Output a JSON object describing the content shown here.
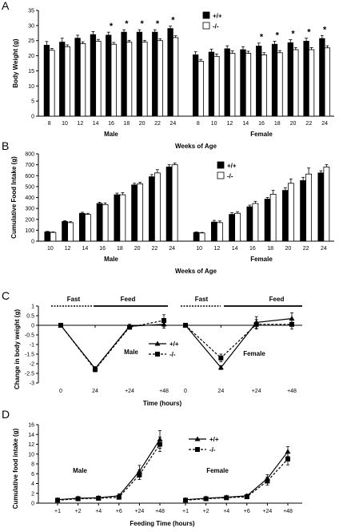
{
  "panels": [
    {
      "letter": "A",
      "ylabel": "Body Weight (g)",
      "xlabel": "Weeks of Age"
    },
    {
      "letter": "B",
      "ylabel": "Cumulative Food Intake (g)",
      "xlabel": "Weeks of Age"
    },
    {
      "letter": "C",
      "ylabel": "Change in body weight (g)",
      "xlabel": "Time (hours)"
    },
    {
      "letter": "D",
      "ylabel": "Cumulative food intake (g)",
      "xlabel": "Feeding Time (hours)"
    }
  ],
  "colors": {
    "wt": "#000000",
    "ko": "#ffffff"
  },
  "chart_data": [
    {
      "type": "bar",
      "ylabel": "Body Weight (g)",
      "xlabel": "Weeks of Age",
      "ylim": [
        0,
        35
      ],
      "yticks": [
        0,
        5,
        10,
        15,
        20,
        25,
        30,
        35
      ],
      "groups": [
        {
          "name": "Male",
          "categories": [
            "8",
            "10",
            "12",
            "14",
            "16",
            "18",
            "20",
            "22",
            "24"
          ],
          "series": [
            {
              "name": "+/+",
              "values": [
                23.5,
                24.5,
                25.8,
                27.0,
                26.8,
                27.8,
                27.8,
                27.8,
                29.0
              ],
              "err": [
                1.2,
                1.3,
                1.0,
                1.0,
                1.0,
                0.8,
                0.8,
                0.8,
                0.8
              ]
            },
            {
              "name": "-/-",
              "values": [
                21.8,
                23.0,
                24.0,
                24.8,
                23.8,
                24.5,
                24.5,
                25.0,
                26.0
              ],
              "err": [
                0.6,
                0.6,
                0.6,
                0.6,
                0.6,
                0.6,
                0.6,
                0.6,
                0.6
              ]
            }
          ],
          "significant": [
            "16",
            "18",
            "20",
            "22",
            "24"
          ]
        },
        {
          "name": "Female",
          "categories": [
            "8",
            "10",
            "12",
            "14",
            "16",
            "18",
            "20",
            "22",
            "24"
          ],
          "series": [
            {
              "name": "+/+",
              "values": [
                20.3,
                21.2,
                22.3,
                22.0,
                23.2,
                23.8,
                24.3,
                24.8,
                25.7
              ],
              "err": [
                1.0,
                1.0,
                1.0,
                1.0,
                1.0,
                1.0,
                1.0,
                1.0,
                1.0
              ]
            },
            {
              "name": "-/-",
              "values": [
                18.2,
                19.8,
                20.8,
                20.8,
                20.3,
                21.0,
                22.0,
                22.0,
                22.6
              ],
              "err": [
                0.6,
                0.8,
                0.8,
                0.7,
                0.7,
                0.7,
                0.7,
                0.7,
                0.7
              ]
            }
          ],
          "significant": [
            "16",
            "18",
            "20",
            "22",
            "24"
          ]
        }
      ],
      "legend": [
        "+/+",
        "-/-"
      ],
      "legend_position": "top-right",
      "significance_marker": "*"
    },
    {
      "type": "bar",
      "ylabel": "Cumulative Food Intake (g)",
      "xlabel": "Weeks of Age",
      "ylim": [
        0,
        800
      ],
      "yticks": [
        0,
        100,
        200,
        300,
        400,
        500,
        600,
        700,
        800
      ],
      "groups": [
        {
          "name": "Male",
          "categories": [
            "10",
            "12",
            "14",
            "16",
            "18",
            "20",
            "22",
            "24"
          ],
          "series": [
            {
              "name": "+/+",
              "values": [
                85,
                180,
                255,
                345,
                425,
                515,
                590,
                680
              ],
              "err": [
                5,
                8,
                10,
                12,
                15,
                15,
                20,
                20
              ]
            },
            {
              "name": "-/-",
              "values": [
                80,
                170,
                245,
                335,
                425,
                525,
                625,
                700
              ],
              "err": [
                5,
                8,
                10,
                15,
                20,
                15,
                30,
                15
              ]
            }
          ]
        },
        {
          "name": "Female",
          "categories": [
            "10",
            "12",
            "14",
            "16",
            "18",
            "20",
            "22",
            "24"
          ],
          "series": [
            {
              "name": "+/+",
              "values": [
                80,
                175,
                245,
                315,
                385,
                465,
                555,
                625
              ],
              "err": [
                5,
                15,
                15,
                15,
                15,
                25,
                30,
                20
              ]
            },
            {
              "name": "-/-",
              "values": [
                75,
                170,
                255,
                345,
                430,
                530,
                615,
                680
              ],
              "err": [
                5,
                15,
                15,
                20,
                35,
                40,
                55,
                20
              ]
            }
          ]
        }
      ],
      "legend": [
        "+/+",
        "-/-"
      ],
      "legend_position": "top-right"
    },
    {
      "type": "line",
      "ylabel": "Change in body weight (g)",
      "xlabel": "Time (hours)",
      "ylim": [
        -3,
        1
      ],
      "yticks": [
        1,
        0.5,
        0,
        -0.5,
        -1,
        -1.5,
        -2,
        -2.5,
        -3
      ],
      "annotations": [
        "Fast",
        "Feed"
      ],
      "groups": [
        {
          "name": "Male",
          "categories": [
            "0",
            "24",
            "+24",
            "+48"
          ],
          "series": [
            {
              "name": "+/+",
              "values": [
                0,
                -2.25,
                -0.05,
                0.05
              ],
              "err": [
                0.05,
                0.1,
                0.1,
                0.2
              ]
            },
            {
              "name": "-/-",
              "values": [
                0,
                -2.3,
                -0.1,
                0.25
              ],
              "err": [
                0.05,
                0.12,
                0.1,
                0.3
              ]
            }
          ]
        },
        {
          "name": "Female",
          "categories": [
            "0",
            "24",
            "+24",
            "+48"
          ],
          "series": [
            {
              "name": "+/+",
              "values": [
                0,
                -2.2,
                0.15,
                0.35
              ],
              "err": [
                0.05,
                0.1,
                0.3,
                0.3
              ]
            },
            {
              "name": "-/-",
              "values": [
                0,
                -1.7,
                0.05,
                0.05
              ],
              "err": [
                0.05,
                0.2,
                0.25,
                0.25
              ]
            }
          ]
        }
      ],
      "legend": [
        "+/+",
        "-/-"
      ],
      "legend_position": "center-right"
    },
    {
      "type": "line",
      "ylabel": "Cumulative food intake (g)",
      "xlabel": "Feeding Time (hours)",
      "ylim": [
        0,
        16
      ],
      "yticks": [
        0,
        2,
        4,
        6,
        8,
        10,
        12,
        14,
        16
      ],
      "groups": [
        {
          "name": "Male",
          "categories": [
            "+1",
            "+2",
            "+4",
            "+6",
            "+24",
            "+48"
          ],
          "series": [
            {
              "name": "+/+",
              "values": [
                0.7,
                1.0,
                1.1,
                1.5,
                6.5,
                13.0
              ],
              "err": [
                0.1,
                0.2,
                0.3,
                0.4,
                1.2,
                1.8
              ]
            },
            {
              "name": "-/-",
              "values": [
                0.6,
                0.9,
                1.0,
                1.2,
                5.8,
                12.0
              ],
              "err": [
                0.1,
                0.2,
                0.3,
                0.4,
                1.0,
                1.5
              ]
            }
          ]
        },
        {
          "name": "Female",
          "categories": [
            "+1",
            "+2",
            "+4",
            "+6",
            "+24",
            "+48"
          ],
          "series": [
            {
              "name": "+/+",
              "values": [
                0.7,
                1.0,
                1.2,
                1.5,
                5.0,
                10.5
              ],
              "err": [
                0.1,
                0.2,
                0.2,
                0.3,
                0.8,
                1.0
              ]
            },
            {
              "name": "-/-",
              "values": [
                0.6,
                0.9,
                1.1,
                1.3,
                4.5,
                9.0
              ],
              "err": [
                0.1,
                0.2,
                0.2,
                0.3,
                0.8,
                1.2
              ]
            }
          ]
        }
      ],
      "legend": [
        "+/+",
        "-/-"
      ],
      "legend_position": "top-right"
    }
  ]
}
